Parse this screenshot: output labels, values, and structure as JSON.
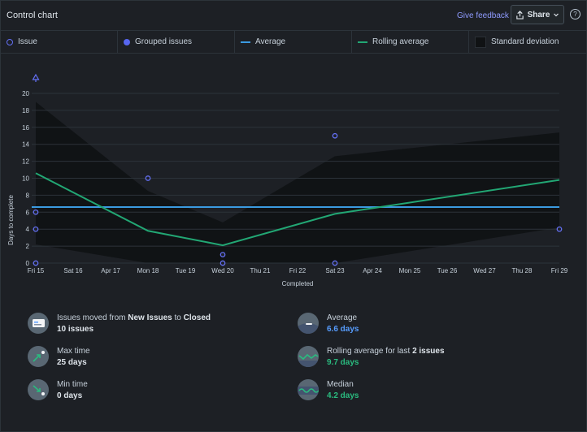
{
  "header": {
    "title": "Control chart",
    "feedback": "Give feedback",
    "share": "Share",
    "help": "?"
  },
  "legend": {
    "items": [
      {
        "label": "Issue"
      },
      {
        "label": "Grouped issues"
      },
      {
        "label": "Average"
      },
      {
        "label": "Rolling average"
      },
      {
        "label": "Standard deviation"
      }
    ]
  },
  "colors": {
    "issue": "#6470f5",
    "average": "#3b9ae0",
    "rolling": "#22a774",
    "band": "#101214"
  },
  "chart_data": {
    "type": "scatter",
    "title": "",
    "xlabel": "Completed",
    "ylabel": "Days to complete",
    "ylim": [
      0,
      20
    ],
    "yticks": [
      0,
      2,
      4,
      6,
      8,
      10,
      12,
      14,
      16,
      18,
      20
    ],
    "x_ticks": [
      "Fri 15",
      "Sat 16",
      "Apr 17",
      "Mon 18",
      "Tue 19",
      "Wed 20",
      "Thu 21",
      "Fri 22",
      "Sat 23",
      "Apr 24",
      "Mon 25",
      "Tue 26",
      "Wed 27",
      "Thu 28",
      "Fri 29"
    ],
    "issues": [
      {
        "x": 0,
        "y": 6
      },
      {
        "x": 0,
        "y": 4
      },
      {
        "x": 0,
        "y": 0
      },
      {
        "x": 3,
        "y": 10
      },
      {
        "x": 5,
        "y": 1
      },
      {
        "x": 5,
        "y": 0
      },
      {
        "x": 8,
        "y": 15
      },
      {
        "x": 8,
        "y": 0
      },
      {
        "x": 14,
        "y": 4
      }
    ],
    "out_of_range": [
      {
        "x": 0,
        "y": 25
      }
    ],
    "average": 6.6,
    "rolling_average": [
      {
        "x": 0,
        "y": 10.6
      },
      {
        "x": 3,
        "y": 3.8
      },
      {
        "x": 5,
        "y": 2.1
      },
      {
        "x": 8,
        "y": 5.8
      },
      {
        "x": 14,
        "y": 9.8
      }
    ],
    "std_upper": [
      {
        "x": 0,
        "y": 19
      },
      {
        "x": 3,
        "y": 8.5
      },
      {
        "x": 5,
        "y": 4.8
      },
      {
        "x": 8,
        "y": 12.6
      },
      {
        "x": 14,
        "y": 15.4
      }
    ],
    "std_lower": [
      {
        "x": 0,
        "y": 2.2
      },
      {
        "x": 3,
        "y": 0
      },
      {
        "x": 5,
        "y": 0
      },
      {
        "x": 8,
        "y": 0
      },
      {
        "x": 14,
        "y": 4.2
      }
    ]
  },
  "stats": {
    "moved": {
      "prefix": "Issues moved from ",
      "from": "New Issues",
      "mid": " to ",
      "to": "Closed",
      "value": "10 issues"
    },
    "max": {
      "label": "Max time",
      "value": "25 days"
    },
    "min": {
      "label": "Min time",
      "value": "0 days"
    },
    "average": {
      "label": "Average",
      "value": "6.6 days"
    },
    "rolling": {
      "prefix": "Rolling average for last ",
      "count": "2 issues",
      "value": "9.7 days"
    },
    "median": {
      "label": "Median",
      "value": "4.2 days"
    }
  }
}
